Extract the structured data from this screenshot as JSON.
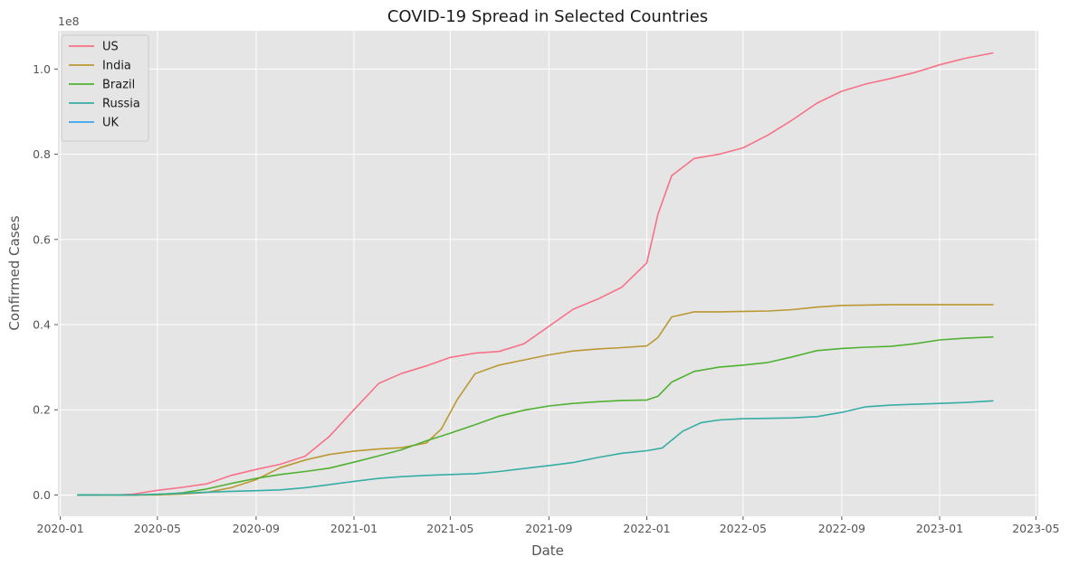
{
  "chart_data": {
    "type": "line",
    "title": "COVID-19 Spread in Selected Countries",
    "xlabel": "Date",
    "ylabel": "Confirmed Cases",
    "y_offset_label": "1e8",
    "xlim": [
      "2019-12-29",
      "2023-05-04"
    ],
    "ylim": [
      -0.05,
      1.09
    ],
    "y_scale_factor": 100000000,
    "x_ticks": [
      "2020-01",
      "2020-05",
      "2020-09",
      "2021-01",
      "2021-05",
      "2021-09",
      "2022-01",
      "2022-05",
      "2022-09",
      "2023-01",
      "2023-05"
    ],
    "y_ticks": [
      "0.0",
      "0.2",
      "0.4",
      "0.6",
      "0.8",
      "1.0"
    ],
    "y_tick_values": [
      0.0,
      0.2,
      0.4,
      0.6,
      0.8,
      1.0
    ],
    "grid": true,
    "legend_position": "top-left",
    "series": [
      {
        "name": "US",
        "color": "#f77189",
        "points": [
          [
            "2020-01-22",
            0
          ],
          [
            "2020-03-15",
            0.0003
          ],
          [
            "2020-04-01",
            0.0021
          ],
          [
            "2020-05-01",
            0.011
          ],
          [
            "2020-06-01",
            0.018
          ],
          [
            "2020-07-01",
            0.026
          ],
          [
            "2020-08-01",
            0.046
          ],
          [
            "2020-09-01",
            0.06
          ],
          [
            "2020-10-01",
            0.072
          ],
          [
            "2020-11-01",
            0.091
          ],
          [
            "2020-12-01",
            0.137
          ],
          [
            "2021-01-01",
            0.2
          ],
          [
            "2021-02-01",
            0.262
          ],
          [
            "2021-03-01",
            0.285
          ],
          [
            "2021-04-01",
            0.303
          ],
          [
            "2021-05-01",
            0.323
          ],
          [
            "2021-06-01",
            0.333
          ],
          [
            "2021-07-01",
            0.337
          ],
          [
            "2021-08-01",
            0.355
          ],
          [
            "2021-09-01",
            0.396
          ],
          [
            "2021-10-01",
            0.436
          ],
          [
            "2021-11-01",
            0.46
          ],
          [
            "2021-12-01",
            0.488
          ],
          [
            "2022-01-01",
            0.545
          ],
          [
            "2022-01-15",
            0.66
          ],
          [
            "2022-02-01",
            0.75
          ],
          [
            "2022-03-01",
            0.79
          ],
          [
            "2022-04-01",
            0.8
          ],
          [
            "2022-05-01",
            0.815
          ],
          [
            "2022-06-01",
            0.845
          ],
          [
            "2022-07-01",
            0.88
          ],
          [
            "2022-08-01",
            0.92
          ],
          [
            "2022-09-01",
            0.948
          ],
          [
            "2022-10-01",
            0.965
          ],
          [
            "2022-11-01",
            0.978
          ],
          [
            "2022-12-01",
            0.992
          ],
          [
            "2023-01-01",
            1.01
          ],
          [
            "2023-02-01",
            1.025
          ],
          [
            "2023-03-09",
            1.038
          ]
        ]
      },
      {
        "name": "India",
        "color": "#bb9832",
        "points": [
          [
            "2020-01-22",
            0
          ],
          [
            "2020-04-01",
            0.0
          ],
          [
            "2020-05-01",
            0.0003
          ],
          [
            "2020-06-01",
            0.002
          ],
          [
            "2020-07-01",
            0.006
          ],
          [
            "2020-08-01",
            0.017
          ],
          [
            "2020-09-01",
            0.036
          ],
          [
            "2020-10-01",
            0.064
          ],
          [
            "2020-11-01",
            0.082
          ],
          [
            "2020-12-01",
            0.095
          ],
          [
            "2021-01-01",
            0.103
          ],
          [
            "2021-02-01",
            0.108
          ],
          [
            "2021-03-01",
            0.111
          ],
          [
            "2021-04-01",
            0.122
          ],
          [
            "2021-04-20",
            0.155
          ],
          [
            "2021-05-10",
            0.225
          ],
          [
            "2021-06-01",
            0.285
          ],
          [
            "2021-07-01",
            0.305
          ],
          [
            "2021-08-01",
            0.317
          ],
          [
            "2021-09-01",
            0.329
          ],
          [
            "2021-10-01",
            0.338
          ],
          [
            "2021-11-01",
            0.343
          ],
          [
            "2021-12-01",
            0.346
          ],
          [
            "2022-01-01",
            0.35
          ],
          [
            "2022-01-15",
            0.37
          ],
          [
            "2022-02-01",
            0.418
          ],
          [
            "2022-03-01",
            0.43
          ],
          [
            "2022-04-01",
            0.43
          ],
          [
            "2022-05-01",
            0.431
          ],
          [
            "2022-06-01",
            0.432
          ],
          [
            "2022-07-01",
            0.435
          ],
          [
            "2022-08-01",
            0.441
          ],
          [
            "2022-09-01",
            0.445
          ],
          [
            "2022-10-01",
            0.446
          ],
          [
            "2022-11-01",
            0.447
          ],
          [
            "2022-12-01",
            0.447
          ],
          [
            "2023-01-01",
            0.447
          ],
          [
            "2023-03-09",
            0.447
          ]
        ]
      },
      {
        "name": "Brazil",
        "color": "#50b131",
        "points": [
          [
            "2020-01-22",
            0
          ],
          [
            "2020-03-15",
            0.0
          ],
          [
            "2020-04-01",
            0.0001
          ],
          [
            "2020-05-01",
            0.001
          ],
          [
            "2020-06-01",
            0.005
          ],
          [
            "2020-07-01",
            0.014
          ],
          [
            "2020-08-01",
            0.027
          ],
          [
            "2020-09-01",
            0.039
          ],
          [
            "2020-10-01",
            0.048
          ],
          [
            "2020-11-01",
            0.055
          ],
          [
            "2020-12-01",
            0.063
          ],
          [
            "2021-01-01",
            0.077
          ],
          [
            "2021-02-01",
            0.092
          ],
          [
            "2021-03-01",
            0.106
          ],
          [
            "2021-04-01",
            0.127
          ],
          [
            "2021-05-01",
            0.145
          ],
          [
            "2021-06-01",
            0.165
          ],
          [
            "2021-07-01",
            0.185
          ],
          [
            "2021-08-01",
            0.199
          ],
          [
            "2021-09-01",
            0.209
          ],
          [
            "2021-10-01",
            0.215
          ],
          [
            "2021-11-01",
            0.219
          ],
          [
            "2021-12-01",
            0.222
          ],
          [
            "2022-01-01",
            0.223
          ],
          [
            "2022-01-15",
            0.232
          ],
          [
            "2022-02-01",
            0.265
          ],
          [
            "2022-03-01",
            0.29
          ],
          [
            "2022-04-01",
            0.3
          ],
          [
            "2022-05-01",
            0.305
          ],
          [
            "2022-06-01",
            0.311
          ],
          [
            "2022-07-01",
            0.324
          ],
          [
            "2022-08-01",
            0.339
          ],
          [
            "2022-09-01",
            0.344
          ],
          [
            "2022-10-01",
            0.347
          ],
          [
            "2022-11-01",
            0.349
          ],
          [
            "2022-12-01",
            0.355
          ],
          [
            "2023-01-01",
            0.364
          ],
          [
            "2023-02-01",
            0.368
          ],
          [
            "2023-03-09",
            0.371
          ]
        ]
      },
      {
        "name": "Russia",
        "color": "#36ada4",
        "points": [
          [
            "2020-01-22",
            0
          ],
          [
            "2020-03-15",
            0.0
          ],
          [
            "2020-04-01",
            0.0001
          ],
          [
            "2020-05-01",
            0.002
          ],
          [
            "2020-06-01",
            0.004
          ],
          [
            "2020-07-01",
            0.0065
          ],
          [
            "2020-08-01",
            0.0085
          ],
          [
            "2020-09-01",
            0.01
          ],
          [
            "2020-10-01",
            0.012
          ],
          [
            "2020-11-01",
            0.017
          ],
          [
            "2020-12-01",
            0.024
          ],
          [
            "2021-01-01",
            0.032
          ],
          [
            "2021-02-01",
            0.039
          ],
          [
            "2021-03-01",
            0.043
          ],
          [
            "2021-04-01",
            0.046
          ],
          [
            "2021-05-01",
            0.048
          ],
          [
            "2021-06-01",
            0.05
          ],
          [
            "2021-07-01",
            0.055
          ],
          [
            "2021-08-01",
            0.062
          ],
          [
            "2021-09-01",
            0.069
          ],
          [
            "2021-10-01",
            0.076
          ],
          [
            "2021-11-01",
            0.088
          ],
          [
            "2021-12-01",
            0.098
          ],
          [
            "2022-01-01",
            0.104
          ],
          [
            "2022-01-20",
            0.11
          ],
          [
            "2022-02-15",
            0.15
          ],
          [
            "2022-03-10",
            0.17
          ],
          [
            "2022-04-01",
            0.176
          ],
          [
            "2022-05-01",
            0.179
          ],
          [
            "2022-06-01",
            0.18
          ],
          [
            "2022-07-01",
            0.181
          ],
          [
            "2022-08-01",
            0.184
          ],
          [
            "2022-09-01",
            0.194
          ],
          [
            "2022-10-01",
            0.207
          ],
          [
            "2022-11-01",
            0.211
          ],
          [
            "2022-12-01",
            0.213
          ],
          [
            "2023-01-01",
            0.215
          ],
          [
            "2023-02-01",
            0.217
          ],
          [
            "2023-03-09",
            0.221
          ]
        ]
      },
      {
        "name": "UK",
        "color": "#3ba3ec",
        "points": []
      }
    ]
  }
}
